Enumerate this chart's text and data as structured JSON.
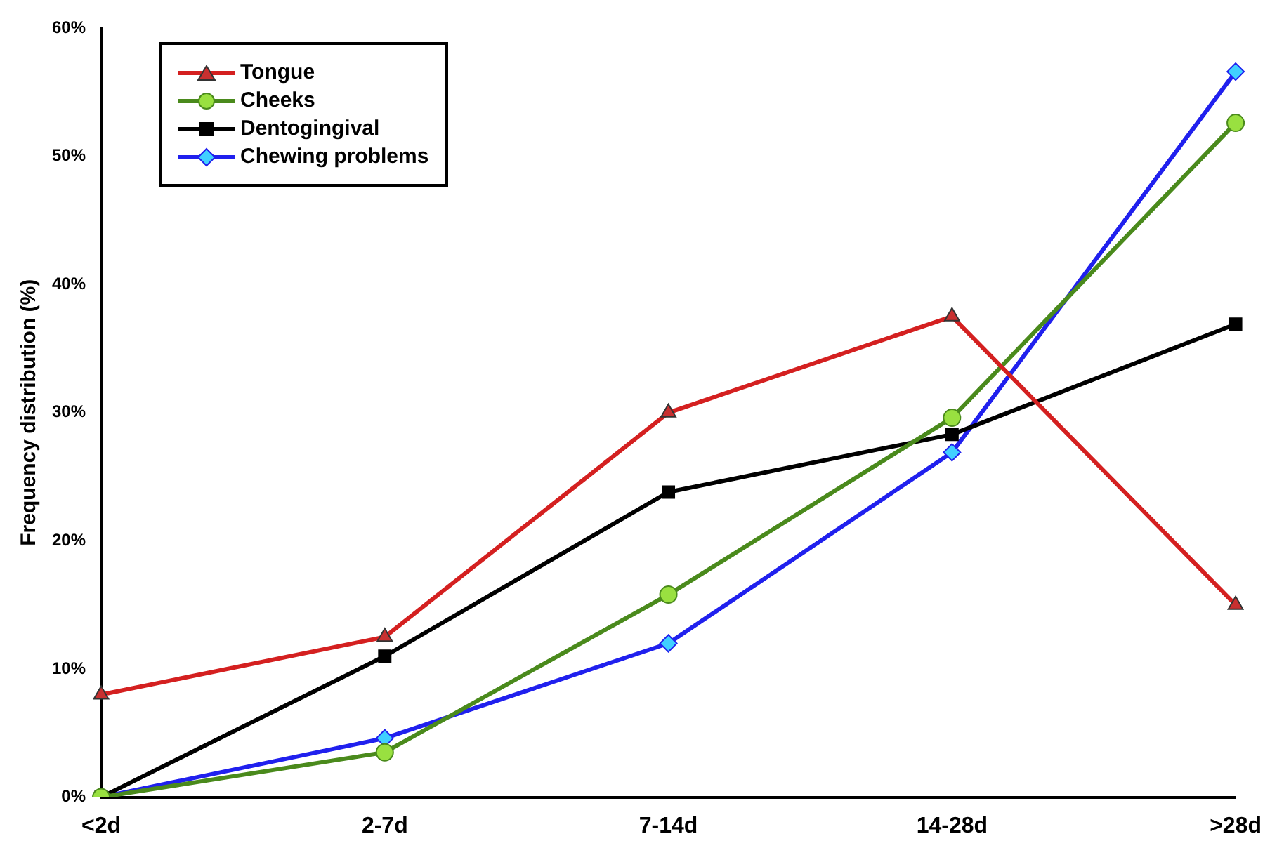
{
  "chart_data": {
    "type": "line",
    "ylabel": "Frequency distribution (%)",
    "categories": [
      "<2d",
      "2-7d",
      "7-14d",
      "14-28d",
      ">28d"
    ],
    "series": [
      {
        "name": "Tongue",
        "color": "#d42020",
        "marker": "triangle",
        "values": [
          8,
          12.5,
          30,
          37.5,
          15
        ]
      },
      {
        "name": "Cheeks",
        "color": "#4a8a1c",
        "marker": "circle",
        "values": [
          0,
          3.5,
          15.8,
          29.6,
          52.6
        ]
      },
      {
        "name": "Dentogingival",
        "color": "#000000",
        "marker": "square",
        "values": [
          0,
          11,
          23.8,
          28.3,
          36.9
        ]
      },
      {
        "name": "Chewing problems",
        "color": "#2020ee",
        "marker": "diamond",
        "values": [
          0,
          4.6,
          12,
          26.9,
          56.6
        ]
      }
    ],
    "ylim": [
      0,
      60
    ],
    "yticks": [
      {
        "value": 0,
        "label": "0%"
      },
      {
        "value": 10,
        "label": "10%"
      },
      {
        "value": 20,
        "label": "20%"
      },
      {
        "value": 30,
        "label": "30%"
      },
      {
        "value": 40,
        "label": "40%"
      },
      {
        "value": 50,
        "label": "50%"
      },
      {
        "value": 60,
        "label": "60%"
      }
    ],
    "grid": false,
    "legend": "top left"
  }
}
